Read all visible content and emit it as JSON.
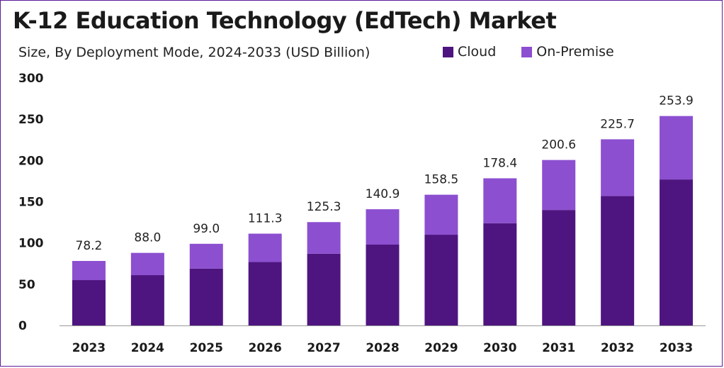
{
  "colors": {
    "cloud": "#4e1580",
    "on_premise": "#8c4fd0",
    "axis": "#999999"
  },
  "chart_data": {
    "type": "bar",
    "stacked": true,
    "title": "K-12 Education Technology (EdTech) Market",
    "subtitle": "Size, By Deployment Mode, 2024-2033 (USD Billion)",
    "categories": [
      "2023",
      "2024",
      "2025",
      "2026",
      "2027",
      "2028",
      "2029",
      "2030",
      "2031",
      "2032",
      "2033"
    ],
    "series": [
      {
        "name": "Cloud",
        "values": [
          55,
          61,
          69,
          77,
          87,
          98,
          110,
          124,
          140,
          157,
          177
        ]
      },
      {
        "name": "On-Premise",
        "values": [
          23.2,
          27.0,
          30.0,
          34.3,
          38.3,
          42.9,
          48.5,
          54.4,
          60.6,
          68.7,
          76.9
        ]
      }
    ],
    "totals": [
      78.2,
      88.0,
      99.0,
      111.3,
      125.3,
      140.9,
      158.5,
      178.4,
      200.6,
      225.7,
      253.9
    ],
    "total_labels": [
      "78.2",
      "88.0",
      "99.0",
      "111.3",
      "125.3",
      "140.9",
      "158.5",
      "178.4",
      "200.6",
      "225.7",
      "253.9"
    ],
    "yticks": [
      0,
      50,
      100,
      150,
      200,
      250,
      300
    ],
    "ylim": [
      0,
      300
    ],
    "legend": [
      "Cloud",
      "On-Premise"
    ],
    "legend_position": "top-right",
    "xlabel": "",
    "ylabel": ""
  }
}
